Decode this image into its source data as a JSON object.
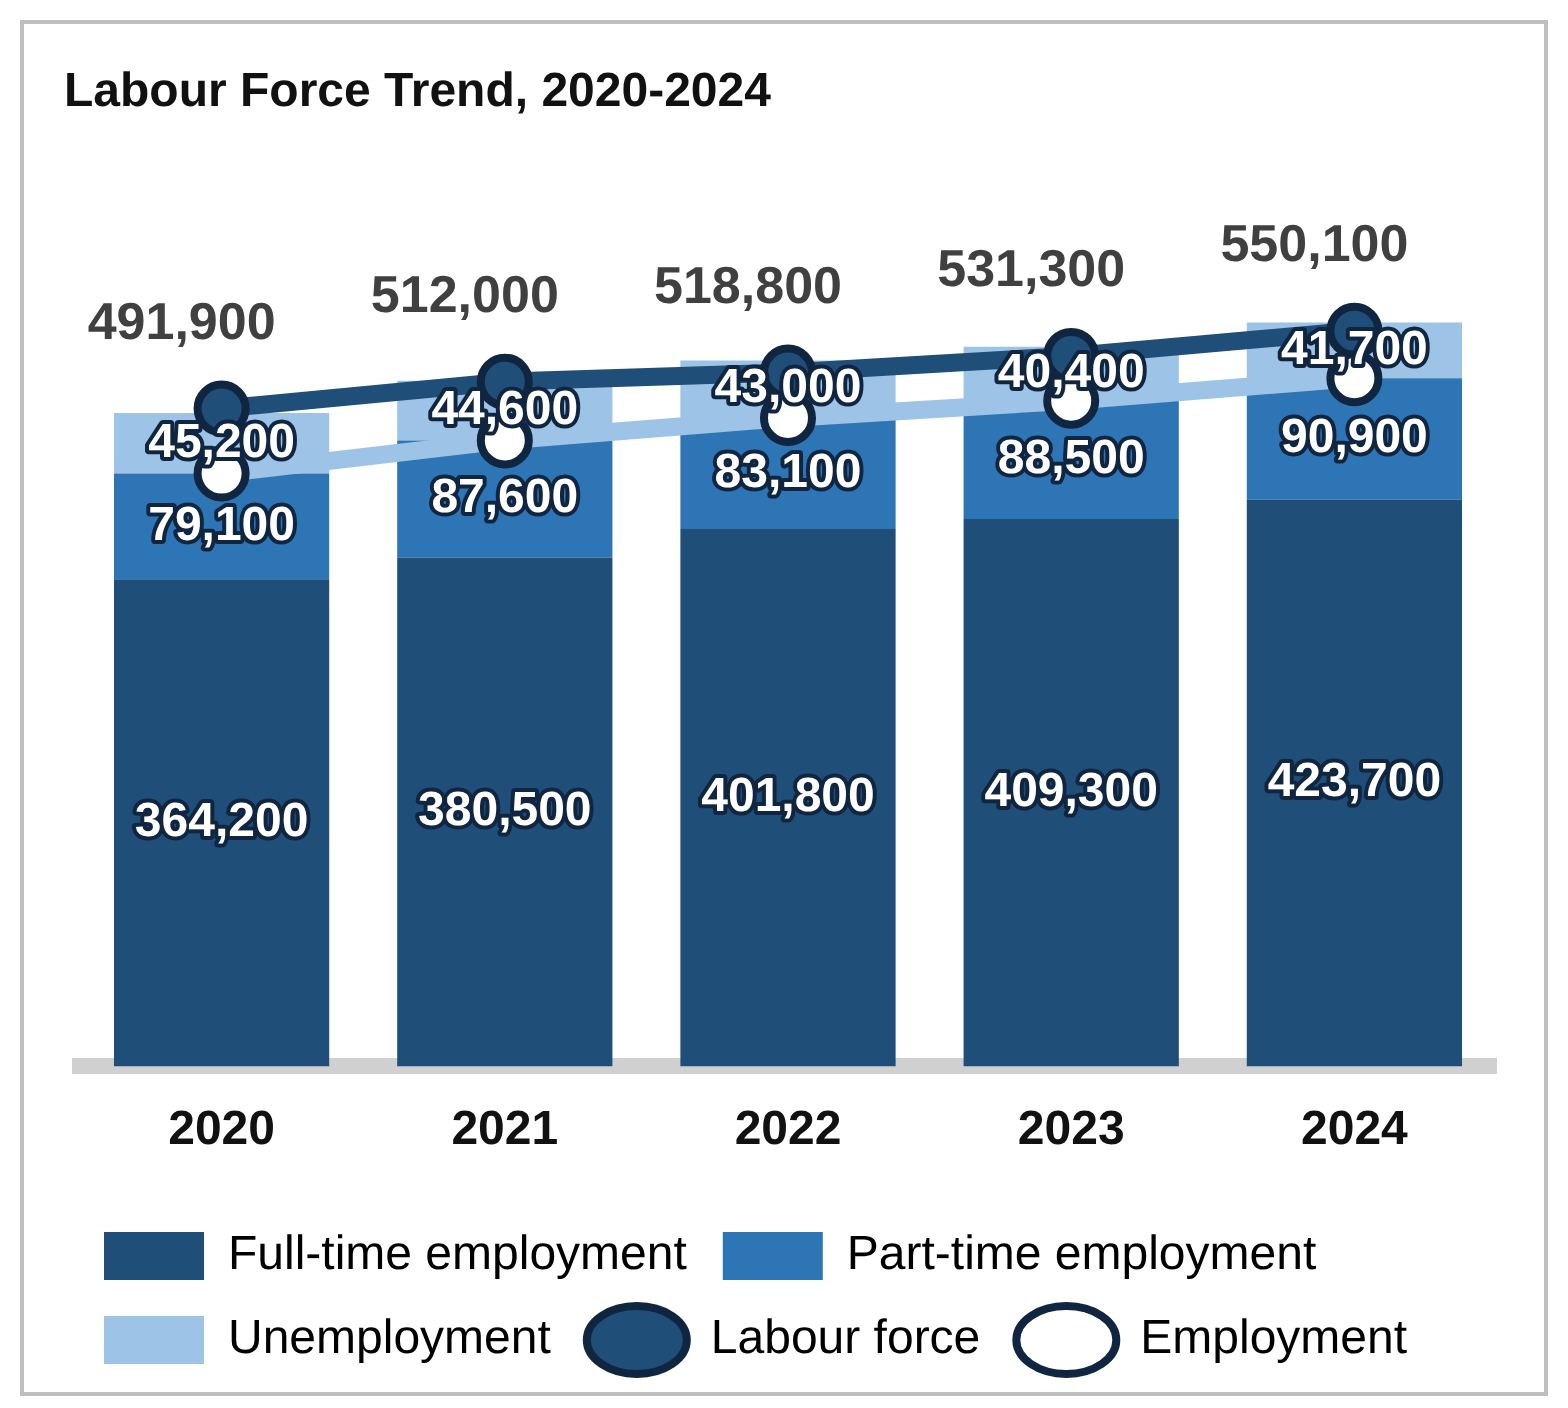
{
  "chart_data": {
    "type": "bar",
    "title": "Labour Force Trend, 2020-2024",
    "stacked": true,
    "categories": [
      "2020",
      "2021",
      "2022",
      "2023",
      "2024"
    ],
    "series": [
      {
        "name": "Full-time employment",
        "color": "#1f4e79",
        "values": [
          364200,
          380500,
          401800,
          409300,
          423700
        ],
        "value_labels": [
          "364,200",
          "380,500",
          "401,800",
          "409,300",
          "423,700"
        ]
      },
      {
        "name": "Part-time employment",
        "color": "#2e75b6",
        "values": [
          79100,
          87600,
          83100,
          88500,
          90900
        ],
        "value_labels": [
          "79,100",
          "87,600",
          "83,100",
          "88,500",
          "90,900"
        ]
      },
      {
        "name": "Unemployment",
        "color": "#9dc3e6",
        "values": [
          45200,
          44600,
          43000,
          40400,
          41700
        ],
        "value_labels": [
          "45,200",
          "44,600",
          "43,000",
          "40,400",
          "41,700"
        ]
      },
      {
        "name": "Labour force",
        "type": "line",
        "color": "#1f4e79",
        "marker": "circle",
        "values": [
          491900,
          512000,
          518800,
          531300,
          550100
        ],
        "value_labels": [
          "491,900",
          "512,000",
          "518,800",
          "531,300",
          "550,100"
        ]
      },
      {
        "name": "Employment",
        "type": "line",
        "color": "#9dc3e6",
        "marker": "circle",
        "values": [
          443300,
          468100,
          484900,
          497800,
          514600
        ]
      }
    ],
    "tick_labels": "x",
    "grid": false,
    "legend": "bottom"
  }
}
